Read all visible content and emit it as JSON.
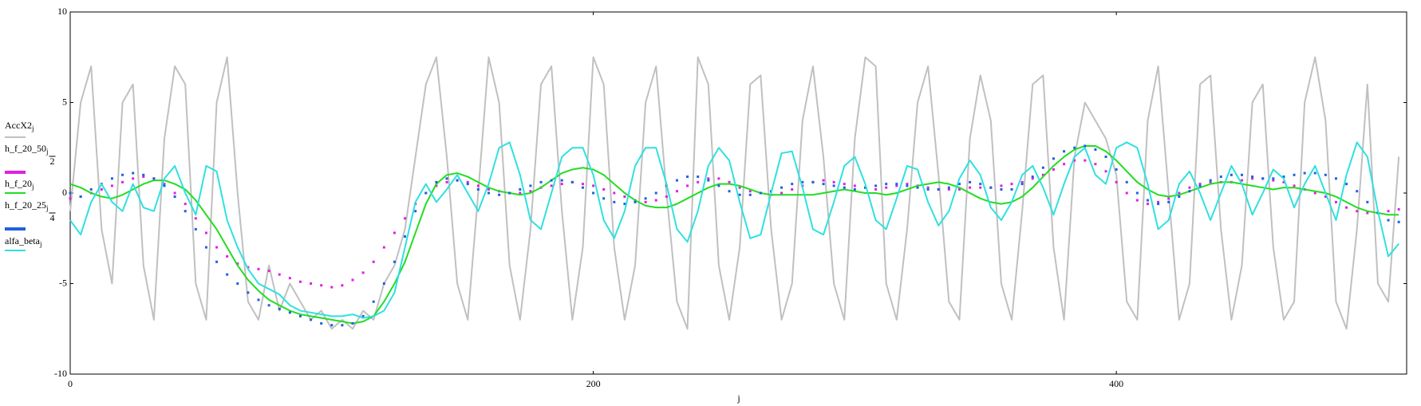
{
  "chart_data": {
    "type": "line",
    "x_label": "j",
    "xlim": [
      0,
      511
    ],
    "xticks": [
      0,
      200,
      400
    ],
    "ylim": [
      -10,
      10
    ],
    "yticks": [
      -10,
      -5,
      0,
      5,
      10
    ],
    "x": [
      0,
      4,
      8,
      12,
      16,
      20,
      24,
      28,
      32,
      36,
      40,
      44,
      48,
      52,
      56,
      60,
      64,
      68,
      72,
      76,
      80,
      84,
      88,
      92,
      96,
      100,
      104,
      108,
      112,
      116,
      120,
      124,
      128,
      132,
      136,
      140,
      144,
      148,
      152,
      156,
      160,
      164,
      168,
      172,
      176,
      180,
      184,
      188,
      192,
      196,
      200,
      204,
      208,
      212,
      216,
      220,
      224,
      228,
      232,
      236,
      240,
      244,
      248,
      252,
      256,
      260,
      264,
      268,
      272,
      276,
      280,
      284,
      288,
      292,
      296,
      300,
      304,
      308,
      312,
      316,
      320,
      324,
      328,
      332,
      336,
      340,
      344,
      348,
      352,
      356,
      360,
      364,
      368,
      372,
      376,
      380,
      384,
      388,
      392,
      396,
      400,
      404,
      408,
      412,
      416,
      420,
      424,
      428,
      432,
      436,
      440,
      444,
      448,
      452,
      456,
      460,
      464,
      468,
      472,
      476,
      480,
      484,
      488,
      492,
      496,
      500,
      504,
      508
    ],
    "series": [
      {
        "name": "AccX2",
        "sub": "j",
        "color": "#c0c0c0",
        "style": "line",
        "values": [
          -1,
          5,
          7,
          -2,
          -5,
          5,
          6,
          -4,
          -7,
          3,
          7,
          6,
          -5,
          -7,
          5,
          7.5,
          0,
          -6,
          -7,
          -4,
          -6.5,
          -5,
          -6,
          -7,
          -6.5,
          -7.5,
          -7,
          -7.5,
          -6.5,
          -7,
          -5,
          -4,
          -2,
          2,
          6,
          7.5,
          2,
          -5,
          -7,
          0,
          7.5,
          5,
          -4,
          -7,
          -2,
          6,
          7,
          -1,
          -7,
          -3,
          7.5,
          6,
          -3,
          -7,
          -4,
          5,
          7,
          0,
          -6,
          -7.5,
          7.5,
          6,
          -4,
          -7,
          -3,
          6,
          6.5,
          -2,
          -7,
          -5,
          4,
          7,
          2,
          -5,
          -7,
          3,
          7.5,
          7,
          -5,
          -7,
          -2,
          5,
          7,
          1,
          -6,
          -7,
          3,
          6.5,
          4,
          -5,
          -7,
          -1,
          6,
          6.5,
          -3,
          -7,
          2,
          5,
          4,
          3,
          1,
          -6,
          -7,
          4,
          7,
          0,
          -7,
          -5,
          6,
          6.5,
          -2,
          -7,
          -4,
          5,
          6,
          -3,
          -7,
          -6,
          5,
          7.5,
          4,
          -6,
          -7.5,
          -2,
          6,
          -5,
          -6,
          2
        ]
      },
      {
        "name": "h_f_20_50",
        "sub": "j",
        "den": 2,
        "color": "#e020e0",
        "style": "dots",
        "values": [
          -0.3,
          -0.2,
          0,
          0.2,
          0.4,
          0.6,
          0.8,
          0.9,
          0.8,
          0.5,
          0,
          -0.6,
          -1.4,
          -2.2,
          -3,
          -3.5,
          -3.9,
          -4.1,
          -4.2,
          -4.3,
          -4.5,
          -4.7,
          -4.9,
          -5,
          -5.1,
          -5.2,
          -5.1,
          -4.8,
          -4.4,
          -3.8,
          -3,
          -2.2,
          -1.4,
          -0.6,
          0,
          0.4,
          0.6,
          0.7,
          0.6,
          0.4,
          0.2,
          0.1,
          0,
          0,
          0.1,
          0.3,
          0.4,
          0.5,
          0.6,
          0.5,
          0.4,
          0.2,
          0,
          -0.2,
          -0.4,
          -0.5,
          -0.4,
          -0.2,
          0.1,
          0.4,
          0.6,
          0.8,
          0.8,
          0.6,
          0.3,
          0.1,
          0,
          -0.1,
          0,
          0.2,
          0.4,
          0.6,
          0.7,
          0.6,
          0.5,
          0.4,
          0.3,
          0.2,
          0.3,
          0.4,
          0.5,
          0.4,
          0.3,
          0.2,
          0.2,
          0.2,
          0.3,
          0.3,
          0.3,
          0.4,
          0.5,
          0.6,
          0.8,
          1,
          1.3,
          1.6,
          1.8,
          1.8,
          1.6,
          1.2,
          0.6,
          0,
          -0.4,
          -0.6,
          -0.5,
          -0.3,
          0,
          0.3,
          0.5,
          0.6,
          0.6,
          0.6,
          0.7,
          0.8,
          0.8,
          0.7,
          0.6,
          0.4,
          0.2,
          0,
          -0.2,
          -0.5,
          -0.8,
          -1,
          -1.1,
          -1.1,
          -1,
          -0.9
        ]
      },
      {
        "name": "h_f_20",
        "sub": "j",
        "color": "#22dd22",
        "style": "line",
        "values": [
          0.5,
          0.3,
          0,
          -0.2,
          -0.3,
          -0.1,
          0.2,
          0.5,
          0.7,
          0.7,
          0.5,
          0.2,
          -0.4,
          -1.2,
          -2,
          -3,
          -4,
          -4.8,
          -5.4,
          -5.9,
          -6.2,
          -6.5,
          -6.7,
          -6.8,
          -6.9,
          -7,
          -7.1,
          -7.2,
          -7.1,
          -6.8,
          -6,
          -5,
          -3.8,
          -2.2,
          -0.6,
          0.5,
          1,
          1.1,
          0.9,
          0.6,
          0.3,
          0.1,
          0,
          -0.1,
          0,
          0.3,
          0.7,
          1.1,
          1.3,
          1.4,
          1.3,
          1,
          0.5,
          0,
          -0.4,
          -0.7,
          -0.8,
          -0.8,
          -0.6,
          -0.3,
          0,
          0.3,
          0.5,
          0.5,
          0.4,
          0.2,
          0,
          -0.1,
          -0.1,
          -0.1,
          -0.1,
          -0.1,
          0,
          0.1,
          0.2,
          0.1,
          0,
          0,
          -0.1,
          0,
          0.2,
          0.4,
          0.5,
          0.6,
          0.5,
          0.3,
          0,
          -0.3,
          -0.5,
          -0.6,
          -0.5,
          -0.2,
          0.3,
          0.9,
          1.5,
          2,
          2.4,
          2.6,
          2.6,
          2.3,
          1.8,
          1.2,
          0.6,
          0.2,
          -0.1,
          -0.2,
          -0.1,
          0.1,
          0.3,
          0.5,
          0.6,
          0.6,
          0.5,
          0.4,
          0.3,
          0.2,
          0.3,
          0.3,
          0.2,
          0.1,
          0,
          -0.2,
          -0.5,
          -0.8,
          -1,
          -1.1,
          -1.2,
          -1.2
        ]
      },
      {
        "name": "h_f_20_25",
        "sub": "j",
        "den": 4,
        "color": "#2060e0",
        "style": "dots",
        "values": [
          0,
          -0.2,
          0.2,
          0.5,
          0.8,
          1,
          1.1,
          1,
          0.8,
          0.4,
          -0.2,
          -1,
          -2,
          -3,
          -3.8,
          -4.5,
          -5,
          -5.5,
          -5.9,
          -6.2,
          -6.4,
          -6.6,
          -6.8,
          -7,
          -7.2,
          -7.3,
          -7.3,
          -7.2,
          -6.8,
          -6,
          -5,
          -3.8,
          -2.4,
          -1,
          0,
          0.6,
          0.8,
          0.7,
          0.5,
          0.2,
          0,
          -0.1,
          0,
          0.2,
          0.4,
          0.6,
          0.7,
          0.7,
          0.6,
          0.3,
          0,
          -0.3,
          -0.5,
          -0.6,
          -0.5,
          -0.3,
          0,
          0.4,
          0.7,
          0.9,
          0.9,
          0.7,
          0.4,
          0.1,
          -0.1,
          -0.1,
          0,
          0.1,
          0.3,
          0.5,
          0.6,
          0.6,
          0.5,
          0.4,
          0.3,
          0.2,
          0.3,
          0.4,
          0.5,
          0.5,
          0.4,
          0.3,
          0.2,
          0.2,
          0.3,
          0.5,
          0.6,
          0.5,
          0.3,
          0.2,
          0.2,
          0.5,
          0.9,
          1.4,
          1.9,
          2.3,
          2.5,
          2.6,
          2.4,
          2,
          1.3,
          0.6,
          0,
          -0.4,
          -0.6,
          -0.5,
          -0.2,
          0.1,
          0.4,
          0.7,
          0.9,
          1,
          1,
          0.9,
          0.8,
          0.8,
          0.9,
          1,
          1.1,
          1.1,
          1,
          0.8,
          0.5,
          0.1,
          -0.5,
          -1.1,
          -1.5,
          -1.6
        ]
      },
      {
        "name": "alfa_beta",
        "sub": "j",
        "color": "#30e0e0",
        "style": "line",
        "values": [
          -1.5,
          -2.3,
          -0.5,
          0.5,
          -0.5,
          -1,
          0.5,
          -0.8,
          -1,
          0.8,
          1.5,
          0,
          -1.2,
          1.5,
          1.2,
          -1.5,
          -3,
          -4.2,
          -5,
          -5.3,
          -5.6,
          -6.2,
          -6.5,
          -6.6,
          -6.7,
          -6.8,
          -6.8,
          -6.7,
          -6.9,
          -6.8,
          -6.5,
          -5.5,
          -3,
          -0.5,
          0.5,
          -0.5,
          0.2,
          1,
          0,
          -1,
          0.5,
          2.5,
          2.8,
          1,
          -1.5,
          -2,
          0,
          2,
          2.5,
          2.5,
          1,
          -1.5,
          -2.5,
          -1,
          1.5,
          2.5,
          2.5,
          0.5,
          -2,
          -2.7,
          -1,
          1.5,
          2.5,
          1.8,
          -0.5,
          -2.5,
          -2.3,
          0,
          2.2,
          2.3,
          0.3,
          -2,
          -2.3,
          -0.5,
          1.5,
          2,
          0.5,
          -1.5,
          -2,
          -0.3,
          1.5,
          1.3,
          -0.5,
          -1.8,
          -1,
          0.8,
          1.8,
          1,
          -0.8,
          -1.5,
          -0.5,
          1,
          1.5,
          0.3,
          -1.2,
          0.5,
          2,
          2.5,
          1,
          0.5,
          2.5,
          2.8,
          2.5,
          0.5,
          -2,
          -1.5,
          0.5,
          1.2,
          0,
          -1.5,
          0,
          1.5,
          0.5,
          -1.2,
          0,
          1.3,
          0.8,
          -0.8,
          0.5,
          1.5,
          0,
          -1.5,
          1,
          2.8,
          2,
          -1,
          -3.5,
          -2.8
        ]
      }
    ]
  }
}
